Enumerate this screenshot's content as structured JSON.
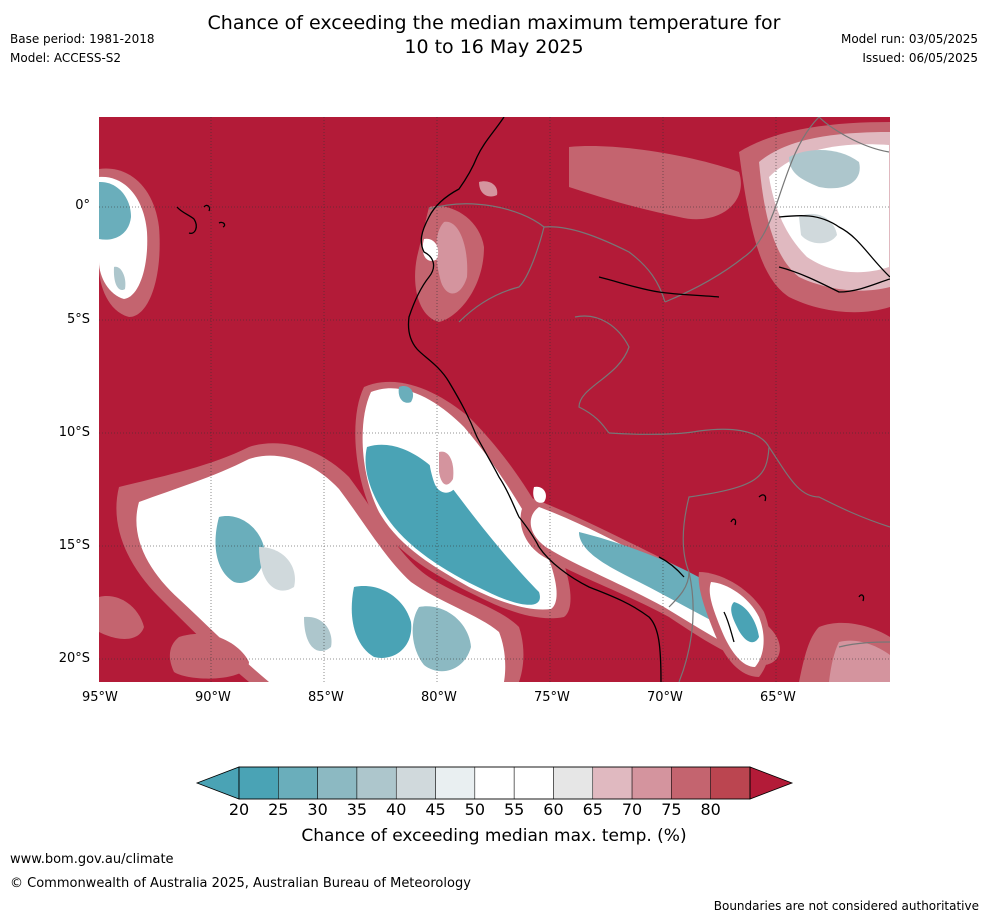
{
  "header": {
    "title_line1": "Chance of exceeding the median maximum temperature for",
    "title_line2": "10 to 16 May 2025",
    "base_period": "Base period: 1981-2018",
    "model": "Model: ACCESS-S2",
    "model_run": "Model run: 03/05/2025",
    "issued": "Issued: 06/05/2025"
  },
  "map": {
    "lon_ticks": [
      "95°W",
      "90°W",
      "85°W",
      "80°W",
      "75°W",
      "70°W",
      "65°W"
    ],
    "lat_ticks": [
      "0°",
      "5°S",
      "10°S",
      "15°S",
      "20°S"
    ],
    "background_color": "#b31b38"
  },
  "colorbar": {
    "ticks": [
      "20",
      "25",
      "30",
      "35",
      "40",
      "45",
      "50",
      "55",
      "60",
      "65",
      "70",
      "75",
      "80"
    ],
    "colors": [
      "#4aa3b5",
      "#6aaebb",
      "#8cb9c2",
      "#adc6cc",
      "#d0d9dc",
      "#e9eff1",
      "#ffffff",
      "#ffffff",
      "#e6e6e6",
      "#e0b9c0",
      "#d4949e",
      "#c4646f",
      "#bb4550"
    ],
    "low_extend_color": "#4aa3b5",
    "high_extend_color": "#b31b38",
    "label": "Chance of exceeding median max. temp. (%)"
  },
  "footer": {
    "website": "www.bom.gov.au/climate",
    "copyright": "© Commonwealth of Australia 2025, Australian Bureau of Meteorology",
    "disclaimer": "Boundaries are not considered authoritative"
  }
}
